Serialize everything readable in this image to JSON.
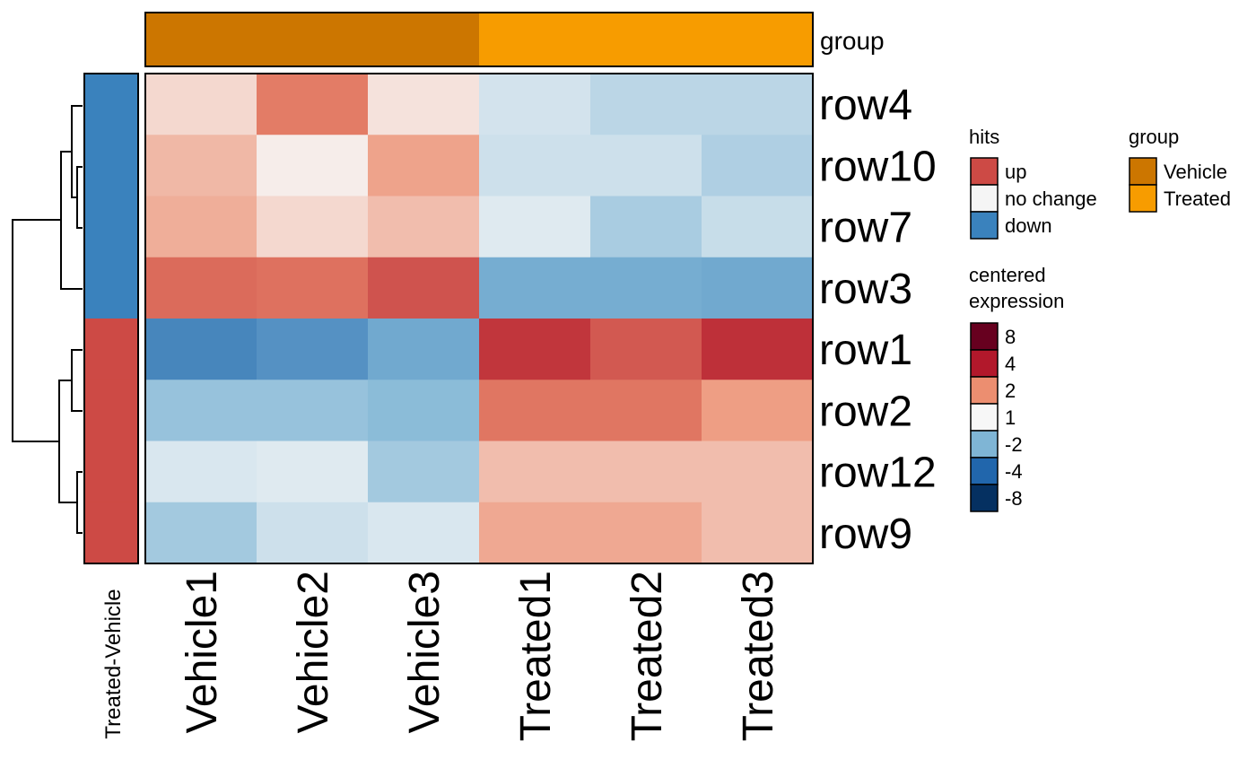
{
  "chart_data": {
    "type": "heatmap",
    "columns": [
      "Vehicle1",
      "Vehicle2",
      "Vehicle3",
      "Treated1",
      "Treated2",
      "Treated3"
    ],
    "rows": [
      "row4",
      "row10",
      "row7",
      "row3",
      "row1",
      "row2",
      "row12",
      "row9"
    ],
    "values": [
      [
        0.6,
        2.3,
        0.4,
        -0.6,
        -1.0,
        -1.0
      ],
      [
        1.2,
        0.2,
        1.6,
        -0.7,
        -0.7,
        -1.2
      ],
      [
        1.4,
        0.6,
        1.1,
        -0.4,
        -1.3,
        -0.8
      ],
      [
        2.6,
        2.5,
        3.0,
        -2.2,
        -2.2,
        -2.3
      ],
      [
        -3.2,
        -2.9,
        -2.3,
        3.5,
        2.9,
        3.6
      ],
      [
        -1.6,
        -1.6,
        -1.8,
        2.4,
        2.4,
        1.7
      ],
      [
        -0.5,
        -0.4,
        -1.4,
        1.1,
        1.1,
        1.1
      ],
      [
        -1.4,
        -0.7,
        -0.5,
        1.5,
        1.5,
        1.1
      ]
    ],
    "column_annotation": {
      "title": "group",
      "values": [
        "Vehicle",
        "Vehicle",
        "Vehicle",
        "Treated",
        "Treated",
        "Treated"
      ]
    },
    "row_annotation": {
      "title": "Treated-Vehicle",
      "values": [
        "down",
        "down",
        "down",
        "down",
        "up",
        "up",
        "up",
        "up"
      ]
    },
    "legends": {
      "hits": {
        "title": "hits",
        "items": [
          {
            "label": "up",
            "color": "#CD4A45"
          },
          {
            "label": "no change",
            "color": "#F5F5F5"
          },
          {
            "label": "down",
            "color": "#3A82BD"
          }
        ]
      },
      "group": {
        "title": "group",
        "items": [
          {
            "label": "Vehicle",
            "color": "#CC7600"
          },
          {
            "label": "Treated",
            "color": "#F79C00"
          }
        ]
      },
      "expression": {
        "title_lines": [
          "centered",
          "expression"
        ],
        "items": [
          {
            "label": "8",
            "color": "#67001F"
          },
          {
            "label": "4",
            "color": "#B2182B"
          },
          {
            "label": "2",
            "color": "#EC8E70"
          },
          {
            "label": "1",
            "color": "#F7F7F7"
          },
          {
            "label": "-2",
            "color": "#7FB5D5"
          },
          {
            "label": "-4",
            "color": "#2166AC"
          },
          {
            "label": "-8",
            "color": "#053061"
          }
        ]
      }
    },
    "dendrogram": "row clustering: (row4,(row10,row7)),row3 | ((row1,row2),(row12,row9))"
  }
}
